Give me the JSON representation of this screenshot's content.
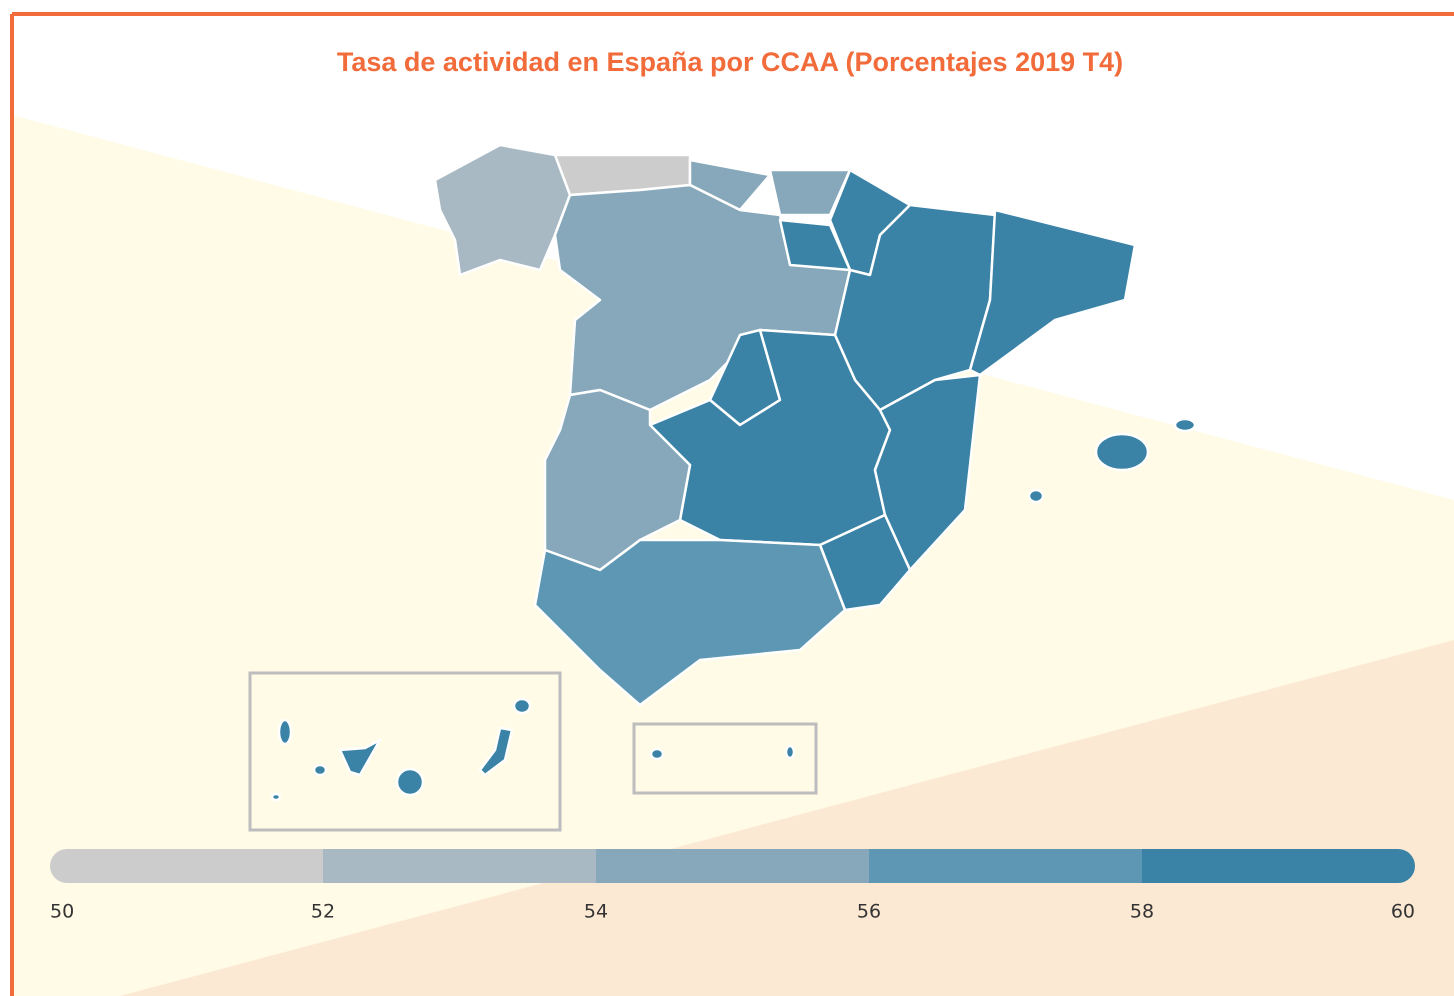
{
  "map_data": {
    "title": "Tasa de actividad en España por CCAA (Porcentajes 2019 T4)",
    "legend": {
      "ticks": [
        50,
        52,
        54,
        56,
        58,
        60
      ],
      "colors": [
        "#cccccc",
        "#a8b9c3",
        "#86a8ba",
        "#5e97b3",
        "#3a82a6"
      ]
    }
  }
}
